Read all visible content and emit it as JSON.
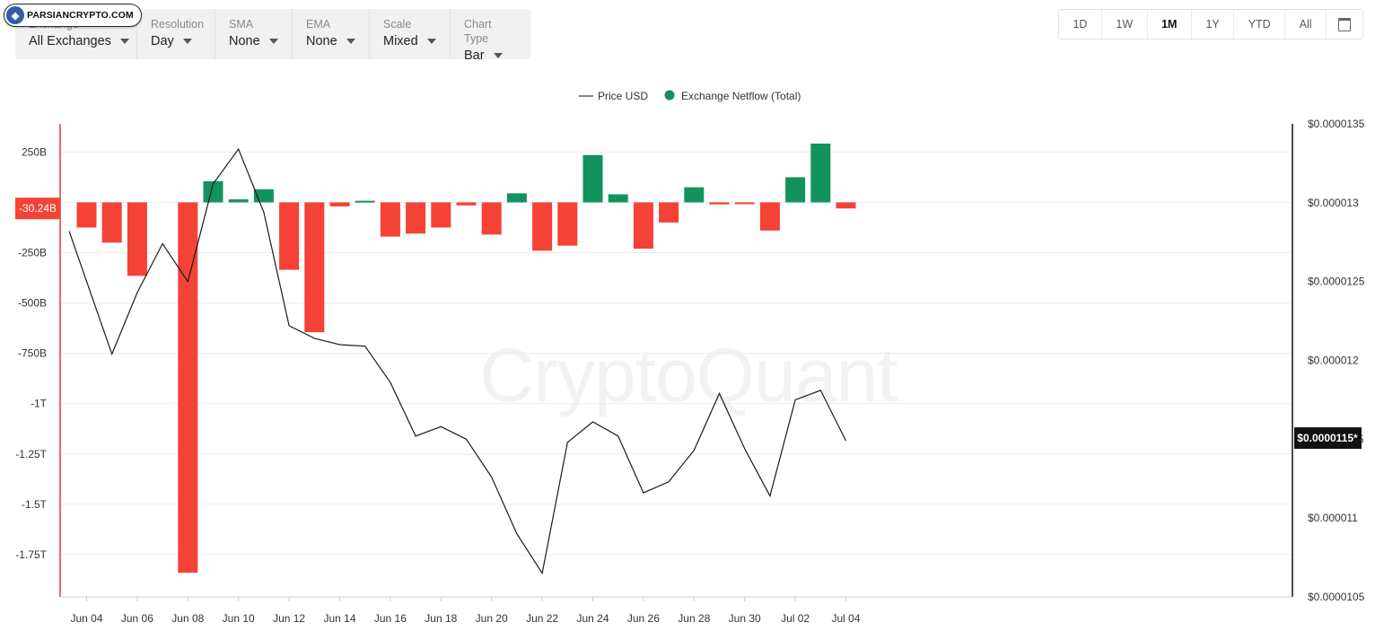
{
  "branding": {
    "logo_text": "PARSIANCRYPTO.COM",
    "watermark": "CryptoQuant"
  },
  "toolbar": {
    "controls": [
      {
        "label": "Exchange",
        "value": "All Exchanges"
      },
      {
        "label": "Resolution",
        "value": "Day"
      },
      {
        "label": "SMA",
        "value": "None"
      },
      {
        "label": "EMA",
        "value": "None"
      },
      {
        "label": "Scale",
        "value": "Mixed"
      },
      {
        "label": "Chart Type",
        "value": "Bar"
      }
    ]
  },
  "ranges": {
    "items": [
      "1D",
      "1W",
      "1M",
      "1Y",
      "YTD",
      "All"
    ],
    "active": "1M",
    "calendar_icon": "calendar-icon"
  },
  "colors": {
    "positive": "#12935e",
    "negative": "#f44236",
    "price_line": "#1a1a1a",
    "left_axis": "#e53935",
    "right_axis": "#111111"
  },
  "chart_data": {
    "type": "bar",
    "legend": [
      {
        "name": "Price USD",
        "marker": "line"
      },
      {
        "name": "Exchange Netflow (Total)",
        "marker": "dot"
      }
    ],
    "x_labels": [
      "Jun 04",
      "Jun 06",
      "Jun 08",
      "Jun 10",
      "Jun 12",
      "Jun 14",
      "Jun 16",
      "Jun 18",
      "Jun 20",
      "Jun 22",
      "Jun 24",
      "Jun 26",
      "Jun 28",
      "Jun 30",
      "Jul 02",
      "Jul 04"
    ],
    "dates": [
      "Jun 04",
      "Jun 05",
      "Jun 06",
      "Jun 07",
      "Jun 08",
      "Jun 09",
      "Jun 10",
      "Jun 11",
      "Jun 12",
      "Jun 13",
      "Jun 14",
      "Jun 15",
      "Jun 16",
      "Jun 17",
      "Jun 18",
      "Jun 19",
      "Jun 20",
      "Jun 21",
      "Jun 22",
      "Jun 23",
      "Jun 24",
      "Jun 25",
      "Jun 26",
      "Jun 27",
      "Jun 28",
      "Jun 29",
      "Jun 30",
      "Jul 01",
      "Jul 02",
      "Jul 03",
      "Jul 04"
    ],
    "netflow_billions": [
      -125,
      -200,
      -365,
      null,
      -1840,
      105,
      15,
      65,
      -335,
      -645,
      -20,
      8,
      -170,
      -155,
      -125,
      -15,
      -160,
      45,
      -240,
      -215,
      235,
      40,
      -230,
      -100,
      75,
      -10,
      -8,
      -140,
      125,
      292,
      -30.24
    ],
    "price_usd": [
      1.282e-05,
      1.204e-05,
      1.243e-05,
      1.274e-05,
      1.25e-05,
      1.312e-05,
      1.334e-05,
      1.294e-05,
      1.222e-05,
      1.214e-05,
      1.21e-05,
      1.209e-05,
      1.186e-05,
      1.152e-05,
      1.158e-05,
      1.15e-05,
      1.126e-05,
      1.09e-05,
      1.065e-05,
      1.148e-05,
      1.161e-05,
      1.152e-05,
      1.116e-05,
      1.123e-05,
      1.143e-05,
      1.179e-05,
      1.144e-05,
      1.114e-05,
      1.175e-05,
      1.181e-05,
      1.149e-05
    ],
    "y_left": {
      "ticks": [
        "250B",
        "-250B",
        "-500B",
        "-750B",
        "-1T",
        "-1.25T",
        "-1.5T",
        "-1.75T"
      ],
      "tick_values": [
        250,
        -250,
        -500,
        -750,
        -1000,
        -1250,
        -1500,
        -1750
      ],
      "range": [
        -1960,
        390
      ],
      "unit": "billions"
    },
    "y_right": {
      "ticks": [
        "$0.0000135",
        "$0.000013",
        "$0.0000125",
        "$0.000012",
        "$0.0000115",
        "$0.000011",
        "$0.0000105"
      ],
      "tick_values": [
        1.35e-05,
        1.3e-05,
        1.25e-05,
        1.2e-05,
        1.15e-05,
        1.1e-05,
        1.05e-05
      ],
      "range": [
        1.05e-05,
        1.35e-05
      ]
    },
    "last_value_labels": {
      "netflow": "-30.24B",
      "price": "$0.0000115*"
    },
    "grid": true
  }
}
